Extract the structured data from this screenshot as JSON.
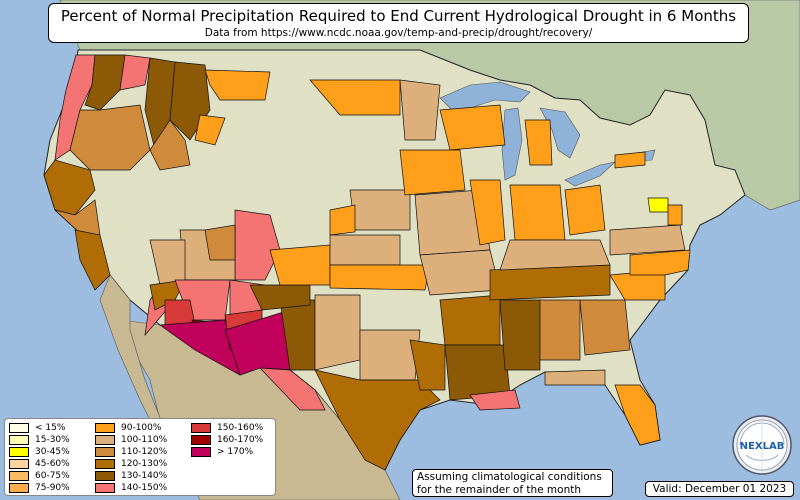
{
  "title": "Percent of Normal Precipitation Required to End Current Hydrological Drought in 6 Months",
  "subtitle": "Data from https://www.ncdc.noaa.gov/temp-and-precip/drought/recovery/",
  "note_line1": "Assuming climatological conditions",
  "note_line2": "for the remainder of the month",
  "valid": "Valid: December 01 2023",
  "logo_text": "NEXLAB",
  "colors": {
    "ocean": "#9dbde0",
    "land_north": "#dfe0c4",
    "land_canada": "#b9c9a6",
    "land_mexico": "#c9b993",
    "lake": "#8fb2d8"
  },
  "legend": [
    {
      "label": "< 15%",
      "color": "#ffffe6"
    },
    {
      "label": "15-30%",
      "color": "#ffffb2"
    },
    {
      "label": "30-45%",
      "color": "#ffff00"
    },
    {
      "label": "45-60%",
      "color": "#fdd49e"
    },
    {
      "label": "60-75%",
      "color": "#fdbb63"
    },
    {
      "label": "75-90%",
      "color": "#fdae4a"
    },
    {
      "label": "90-100%",
      "color": "#ff9f1a"
    },
    {
      "label": "100-110%",
      "color": "#ddb07b"
    },
    {
      "label": "110-120%",
      "color": "#d08a3c"
    },
    {
      "label": "120-130%",
      "color": "#b06d06"
    },
    {
      "label": "130-140%",
      "color": "#8c5a06"
    },
    {
      "label": "140-150%",
      "color": "#f47373"
    },
    {
      "label": "150-160%",
      "color": "#d83a3a"
    },
    {
      "label": "160-170%",
      "color": "#a00000"
    },
    {
      "label": "> 170%",
      "color": "#c0005a"
    }
  ]
}
